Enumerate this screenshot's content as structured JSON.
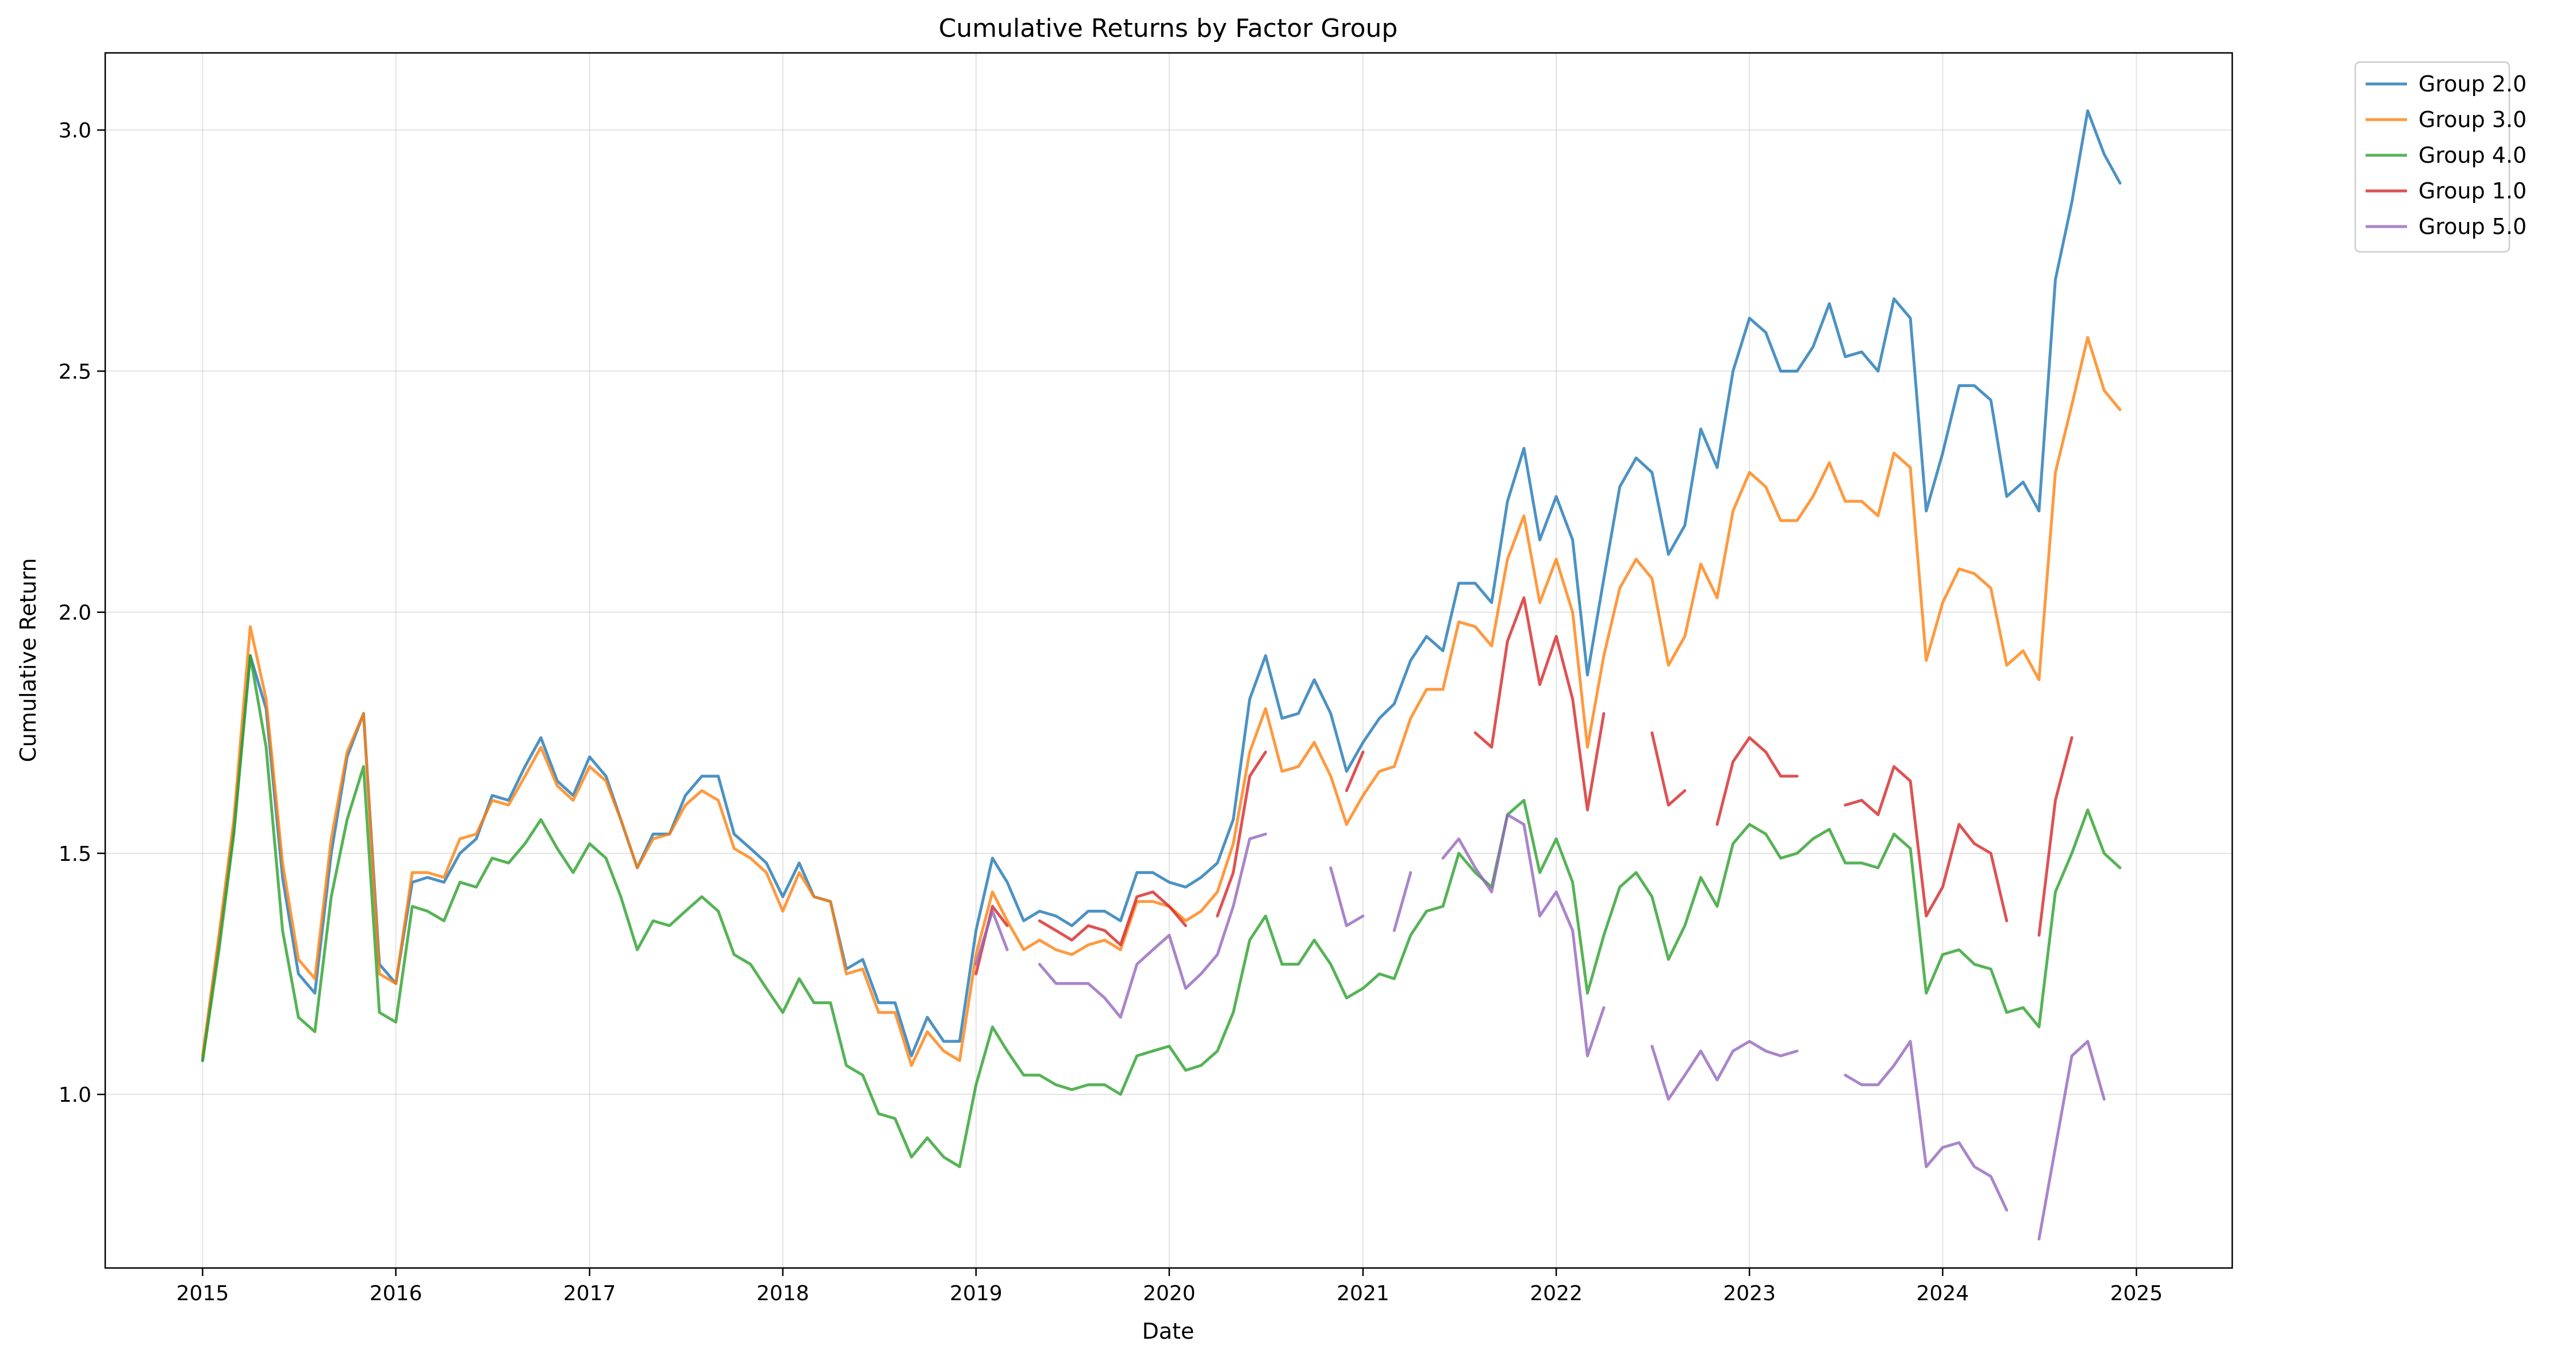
{
  "chart_data": {
    "type": "line",
    "title": "Cumulative Returns by Factor Group",
    "xlabel": "Date",
    "ylabel": "Cumulative Return",
    "xlim": [
      "2014-07-01",
      "2025-07-01"
    ],
    "ylim": [
      0.64,
      3.16
    ],
    "x_ticks": [
      "2015",
      "2016",
      "2017",
      "2018",
      "2019",
      "2020",
      "2021",
      "2022",
      "2023",
      "2024",
      "2025"
    ],
    "y_ticks": [
      "1.0",
      "1.5",
      "2.0",
      "2.5",
      "3.0"
    ],
    "grid": true,
    "legend_position": "outside-top-right",
    "x": [
      "2015-01",
      "2015-02",
      "2015-03",
      "2015-04",
      "2015-05",
      "2015-06",
      "2015-07",
      "2015-08",
      "2015-09",
      "2015-10",
      "2015-11",
      "2015-12",
      "2016-01",
      "2016-02",
      "2016-03",
      "2016-04",
      "2016-05",
      "2016-06",
      "2016-07",
      "2016-08",
      "2016-09",
      "2016-10",
      "2016-11",
      "2016-12",
      "2017-01",
      "2017-02",
      "2017-03",
      "2017-04",
      "2017-05",
      "2017-06",
      "2017-07",
      "2017-08",
      "2017-09",
      "2017-10",
      "2017-11",
      "2017-12",
      "2018-01",
      "2018-02",
      "2018-03",
      "2018-04",
      "2018-05",
      "2018-06",
      "2018-07",
      "2018-08",
      "2018-09",
      "2018-10",
      "2018-11",
      "2018-12",
      "2019-01",
      "2019-02",
      "2019-03",
      "2019-04",
      "2019-05",
      "2019-06",
      "2019-07",
      "2019-08",
      "2019-09",
      "2019-10",
      "2019-11",
      "2019-12",
      "2020-01",
      "2020-02",
      "2020-03",
      "2020-04",
      "2020-05",
      "2020-06",
      "2020-07",
      "2020-08",
      "2020-09",
      "2020-10",
      "2020-11",
      "2020-12",
      "2021-01",
      "2021-02",
      "2021-03",
      "2021-04",
      "2021-05",
      "2021-06",
      "2021-07",
      "2021-08",
      "2021-09",
      "2021-10",
      "2021-11",
      "2021-12",
      "2022-01",
      "2022-02",
      "2022-03",
      "2022-04",
      "2022-05",
      "2022-06",
      "2022-07",
      "2022-08",
      "2022-09",
      "2022-10",
      "2022-11",
      "2022-12",
      "2023-01",
      "2023-02",
      "2023-03",
      "2023-04",
      "2023-05",
      "2023-06",
      "2023-07",
      "2023-08",
      "2023-09",
      "2023-10",
      "2023-11",
      "2023-12",
      "2024-01",
      "2024-02",
      "2024-03",
      "2024-04",
      "2024-05",
      "2024-06",
      "2024-07",
      "2024-08",
      "2024-09",
      "2024-10",
      "2024-11",
      "2024-12"
    ],
    "series": [
      {
        "name": "Group 2.0",
        "color": "#1f77b4",
        "values": [
          1.07,
          1.32,
          1.55,
          1.91,
          1.8,
          1.45,
          1.25,
          1.21,
          1.5,
          1.7,
          1.79,
          1.27,
          1.23,
          1.44,
          1.45,
          1.44,
          1.5,
          1.53,
          1.62,
          1.61,
          1.68,
          1.74,
          1.65,
          1.62,
          1.7,
          1.66,
          1.57,
          1.47,
          1.54,
          1.54,
          1.62,
          1.66,
          1.66,
          1.54,
          1.51,
          1.48,
          1.41,
          1.48,
          1.41,
          1.4,
          1.26,
          1.28,
          1.19,
          1.19,
          1.08,
          1.16,
          1.11,
          1.11,
          1.34,
          1.49,
          1.44,
          1.36,
          1.38,
          1.37,
          1.35,
          1.38,
          1.38,
          1.36,
          1.46,
          1.46,
          1.44,
          1.43,
          1.45,
          1.48,
          1.57,
          1.82,
          1.91,
          1.78,
          1.79,
          1.86,
          1.79,
          1.67,
          1.73,
          1.78,
          1.81,
          1.9,
          1.95,
          1.92,
          2.06,
          2.06,
          2.02,
          2.23,
          2.34,
          2.15,
          2.24,
          2.15,
          1.87,
          2.07,
          2.26,
          2.32,
          2.29,
          2.12,
          2.18,
          2.38,
          2.3,
          2.5,
          2.61,
          2.58,
          2.5,
          2.5,
          2.55,
          2.64,
          2.53,
          2.54,
          2.5,
          2.65,
          2.61,
          2.21,
          2.33,
          2.47,
          2.47,
          2.44,
          2.24,
          2.27,
          2.21,
          2.69,
          2.85,
          3.04,
          2.95,
          2.89
        ]
      },
      {
        "name": "Group 3.0",
        "color": "#ff7f0e",
        "values": [
          1.08,
          1.33,
          1.57,
          1.97,
          1.82,
          1.48,
          1.28,
          1.24,
          1.53,
          1.71,
          1.79,
          1.25,
          1.23,
          1.46,
          1.46,
          1.45,
          1.53,
          1.54,
          1.61,
          1.6,
          1.66,
          1.72,
          1.64,
          1.61,
          1.68,
          1.65,
          1.57,
          1.47,
          1.53,
          1.54,
          1.6,
          1.63,
          1.61,
          1.51,
          1.49,
          1.46,
          1.38,
          1.46,
          1.41,
          1.4,
          1.25,
          1.26,
          1.17,
          1.17,
          1.06,
          1.13,
          1.09,
          1.07,
          1.29,
          1.42,
          1.36,
          1.3,
          1.32,
          1.3,
          1.29,
          1.31,
          1.32,
          1.3,
          1.4,
          1.4,
          1.39,
          1.36,
          1.38,
          1.42,
          1.52,
          1.71,
          1.8,
          1.67,
          1.68,
          1.73,
          1.66,
          1.56,
          1.62,
          1.67,
          1.68,
          1.78,
          1.84,
          1.84,
          1.98,
          1.97,
          1.93,
          2.11,
          2.2,
          2.02,
          2.11,
          2.0,
          1.72,
          1.91,
          2.05,
          2.11,
          2.07,
          1.89,
          1.95,
          2.1,
          2.03,
          2.21,
          2.29,
          2.26,
          2.19,
          2.19,
          2.24,
          2.31,
          2.23,
          2.23,
          2.2,
          2.33,
          2.3,
          1.9,
          2.02,
          2.09,
          2.08,
          2.05,
          1.89,
          1.92,
          1.86,
          2.29,
          2.43,
          2.57,
          2.46,
          2.42
        ]
      },
      {
        "name": "Group 4.0",
        "color": "#2ca02c",
        "values": [
          1.07,
          1.3,
          1.54,
          1.91,
          1.72,
          1.34,
          1.16,
          1.13,
          1.41,
          1.57,
          1.68,
          1.17,
          1.15,
          1.39,
          1.38,
          1.36,
          1.44,
          1.43,
          1.49,
          1.48,
          1.52,
          1.57,
          1.51,
          1.46,
          1.52,
          1.49,
          1.41,
          1.3,
          1.36,
          1.35,
          1.38,
          1.41,
          1.38,
          1.29,
          1.27,
          1.22,
          1.17,
          1.24,
          1.19,
          1.19,
          1.06,
          1.04,
          0.96,
          0.95,
          0.87,
          0.91,
          0.87,
          0.85,
          1.02,
          1.14,
          1.09,
          1.04,
          1.04,
          1.02,
          1.01,
          1.02,
          1.02,
          1.0,
          1.08,
          1.09,
          1.1,
          1.05,
          1.06,
          1.09,
          1.17,
          1.32,
          1.37,
          1.27,
          1.27,
          1.32,
          1.27,
          1.2,
          1.22,
          1.25,
          1.24,
          1.33,
          1.38,
          1.39,
          1.5,
          1.46,
          1.43,
          1.58,
          1.61,
          1.46,
          1.53,
          1.44,
          1.21,
          1.33,
          1.43,
          1.46,
          1.41,
          1.28,
          1.35,
          1.45,
          1.39,
          1.52,
          1.56,
          1.54,
          1.49,
          1.5,
          1.53,
          1.55,
          1.48,
          1.48,
          1.47,
          1.54,
          1.51,
          1.21,
          1.29,
          1.3,
          1.27,
          1.26,
          1.17,
          1.18,
          1.14,
          1.42,
          1.5,
          1.59,
          1.5,
          1.47
        ]
      },
      {
        "name": "Group 1.0",
        "color": "#d62728",
        "values": [
          null,
          null,
          null,
          null,
          null,
          null,
          null,
          null,
          null,
          null,
          null,
          null,
          null,
          null,
          null,
          null,
          null,
          null,
          null,
          null,
          null,
          null,
          null,
          null,
          null,
          null,
          null,
          null,
          null,
          null,
          null,
          null,
          null,
          null,
          null,
          null,
          null,
          null,
          null,
          null,
          null,
          null,
          null,
          null,
          null,
          null,
          null,
          null,
          1.25,
          1.39,
          1.35,
          null,
          1.36,
          1.34,
          1.32,
          1.35,
          1.34,
          1.31,
          1.41,
          1.42,
          1.39,
          1.35,
          null,
          1.37,
          1.46,
          1.66,
          1.71,
          null,
          null,
          null,
          null,
          1.63,
          1.71,
          null,
          null,
          null,
          null,
          null,
          null,
          1.75,
          1.72,
          1.94,
          2.03,
          1.85,
          1.95,
          1.82,
          1.59,
          1.79,
          null,
          null,
          1.75,
          1.6,
          1.63,
          null,
          1.56,
          1.69,
          1.74,
          1.71,
          1.66,
          1.66,
          null,
          null,
          1.6,
          1.61,
          1.58,
          1.68,
          1.65,
          1.37,
          1.43,
          1.56,
          1.52,
          1.5,
          1.36,
          null,
          1.33,
          1.61,
          1.74,
          null,
          null,
          null
        ]
      },
      {
        "name": "Group 5.0",
        "color": "#9467bd",
        "values": [
          null,
          null,
          null,
          null,
          null,
          null,
          null,
          null,
          null,
          null,
          null,
          null,
          null,
          null,
          null,
          null,
          null,
          null,
          null,
          null,
          null,
          null,
          null,
          null,
          null,
          null,
          null,
          null,
          null,
          null,
          null,
          null,
          null,
          null,
          null,
          null,
          null,
          null,
          null,
          null,
          null,
          null,
          null,
          null,
          null,
          null,
          null,
          null,
          1.27,
          1.38,
          1.3,
          null,
          1.27,
          1.23,
          1.23,
          1.23,
          1.2,
          1.16,
          1.27,
          1.3,
          1.33,
          1.22,
          1.25,
          1.29,
          1.39,
          1.53,
          1.54,
          null,
          null,
          null,
          1.47,
          1.35,
          1.37,
          null,
          1.34,
          1.46,
          null,
          1.49,
          1.53,
          1.47,
          1.42,
          1.58,
          1.56,
          1.37,
          1.42,
          1.34,
          1.08,
          1.18,
          null,
          null,
          1.1,
          0.99,
          1.04,
          1.09,
          1.03,
          1.09,
          1.11,
          1.09,
          1.08,
          1.09,
          null,
          null,
          1.04,
          1.02,
          1.02,
          1.06,
          1.11,
          0.85,
          0.89,
          0.9,
          0.85,
          0.83,
          0.76,
          null,
          0.7,
          0.89,
          1.08,
          1.11,
          0.99,
          null
        ]
      }
    ]
  }
}
